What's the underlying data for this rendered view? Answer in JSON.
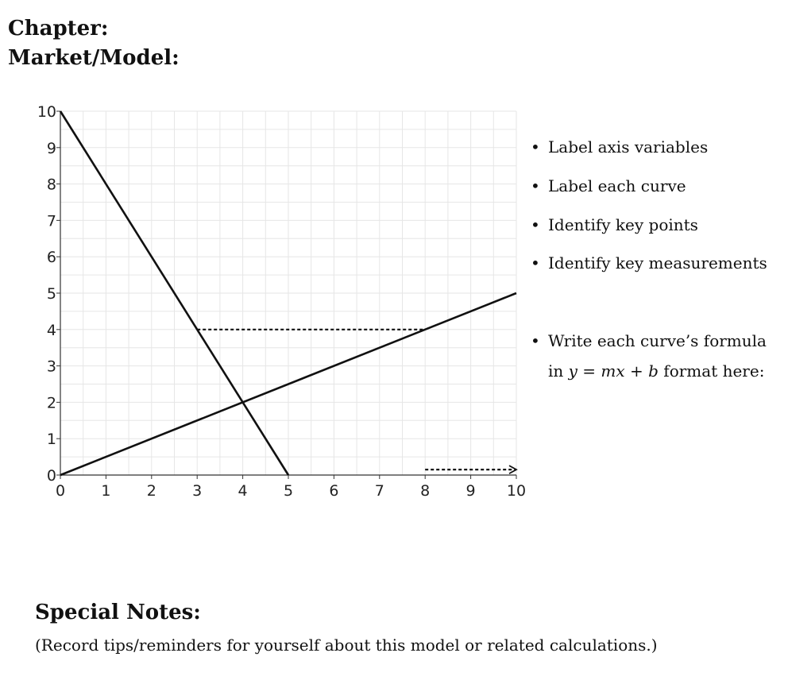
{
  "header": {
    "chapter_label": "Chapter:",
    "market_label": "Market/Model:"
  },
  "chart_data": {
    "type": "line",
    "title": "",
    "xlabel": "",
    "ylabel": "",
    "xlim": [
      0,
      10
    ],
    "ylim": [
      0,
      10
    ],
    "xticks": [
      "0",
      "1",
      "2",
      "3",
      "4",
      "5",
      "6",
      "7",
      "8",
      "9",
      "10"
    ],
    "yticks": [
      "0",
      "1",
      "2",
      "3",
      "4",
      "5",
      "6",
      "7",
      "8",
      "9",
      "10"
    ],
    "grid": true,
    "series": [
      {
        "x": [
          0,
          5
        ],
        "y": [
          10,
          0
        ],
        "style": "solid"
      },
      {
        "x": [
          0,
          10
        ],
        "y": [
          0,
          5
        ],
        "style": "solid"
      }
    ],
    "reference_lines": [
      {
        "x": [
          3,
          8
        ],
        "y": [
          4,
          4
        ],
        "style": "dotted"
      },
      {
        "x": [
          8,
          10
        ],
        "y": [
          0.15,
          0.15
        ],
        "style": "dotted-arrow"
      }
    ],
    "colors": {
      "line": "#111111",
      "grid": "#e6e6e6",
      "axis": "#333333"
    }
  },
  "instructions": {
    "bullet_symbol": "•",
    "items": [
      "Label axis variables",
      "Label each curve",
      "Identify key points",
      "Identify key measurements",
      "Write each curve’s formula"
    ],
    "formula_prefix": "in ",
    "formula_math": "y = mx + b",
    "formula_suffix": " format here:"
  },
  "notes": {
    "title": "Special Notes:",
    "body": "(Record tips/reminders for yourself about this model or related calculations.)"
  }
}
